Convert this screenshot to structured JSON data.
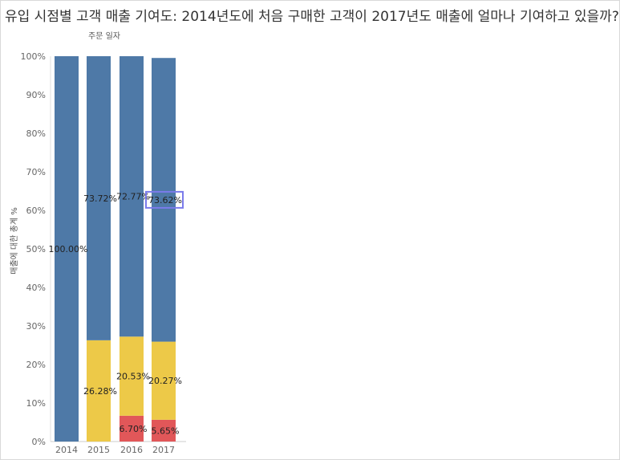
{
  "title": "유입 시점별 고객 매출 기여도: 2014년도에 처음 구매한 고객이 2017년도 매출에 얼마나 기여하고 있을까?",
  "column_header": "주문 일자",
  "colors": {
    "blue": "#4e79a7",
    "yellow": "#edc948",
    "red": "#e15759",
    "highlight": "#7b7bea"
  },
  "chart_data": {
    "type": "bar",
    "stacked": true,
    "categories": [
      "2014",
      "2015",
      "2016",
      "2017"
    ],
    "ylabel": "매출에 대한 총계 %",
    "ylim": [
      0,
      100
    ],
    "yticks": [
      "0%",
      "10%",
      "20%",
      "30%",
      "40%",
      "50%",
      "60%",
      "70%",
      "80%",
      "90%",
      "100%"
    ],
    "series": [
      {
        "color": "#e15759",
        "values": [
          0,
          0,
          6.7,
          5.65
        ],
        "labels": [
          "",
          "",
          "6.70%",
          "5.65%"
        ]
      },
      {
        "color": "#edc948",
        "values": [
          0,
          26.28,
          20.53,
          20.27
        ],
        "labels": [
          "",
          "26.28%",
          "20.53%",
          "20.27%"
        ]
      },
      {
        "color": "#4e79a7",
        "values": [
          100.0,
          73.72,
          72.77,
          73.62
        ],
        "labels": [
          "100.00%",
          "73.72%",
          "72.77%",
          "73.62%"
        ]
      }
    ],
    "highlighted_label": "73.62%"
  }
}
